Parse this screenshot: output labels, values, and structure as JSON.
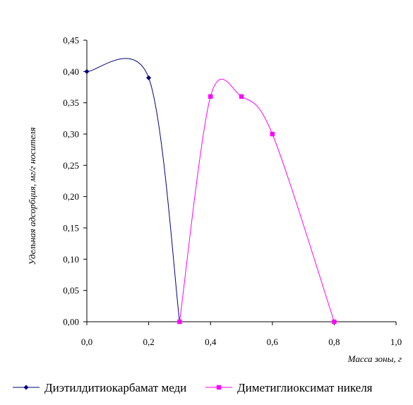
{
  "chart_data": {
    "type": "scatter",
    "xlabel": "Масса зоны, г",
    "ylabel": "Удельная адсорбция, мг/г носителя",
    "xlim": [
      0,
      1.0
    ],
    "ylim": [
      0,
      0.45
    ],
    "xticks": [
      0.0,
      0.2,
      0.4,
      0.6,
      0.8,
      1.0
    ],
    "xtick_labels": [
      "0,0",
      "0,2",
      "0,4",
      "0,6",
      "0,8",
      "1,0"
    ],
    "yticks": [
      0.0,
      0.05,
      0.1,
      0.15,
      0.2,
      0.25,
      0.3,
      0.35,
      0.4,
      0.45
    ],
    "ytick_labels": [
      "0,00",
      "0,05",
      "0,10",
      "0,15",
      "0,20",
      "0,25",
      "0,30",
      "0,35",
      "0,40",
      "0,45"
    ],
    "grid": false,
    "legend_position": "bottom",
    "series": [
      {
        "name": "Диэтилдитиокарбамат меди",
        "color": "#000080",
        "marker": "diamond",
        "smooth": true,
        "x": [
          0.0,
          0.2,
          0.3
        ],
        "y": [
          0.4,
          0.39,
          0.0
        ]
      },
      {
        "name": "Диметиглиоксимат никеля",
        "color": "#ff00ff",
        "marker": "square",
        "smooth": true,
        "x": [
          0.3,
          0.4,
          0.5,
          0.6,
          0.8
        ],
        "y": [
          0.0,
          0.36,
          0.36,
          0.3,
          0.0
        ]
      }
    ]
  }
}
